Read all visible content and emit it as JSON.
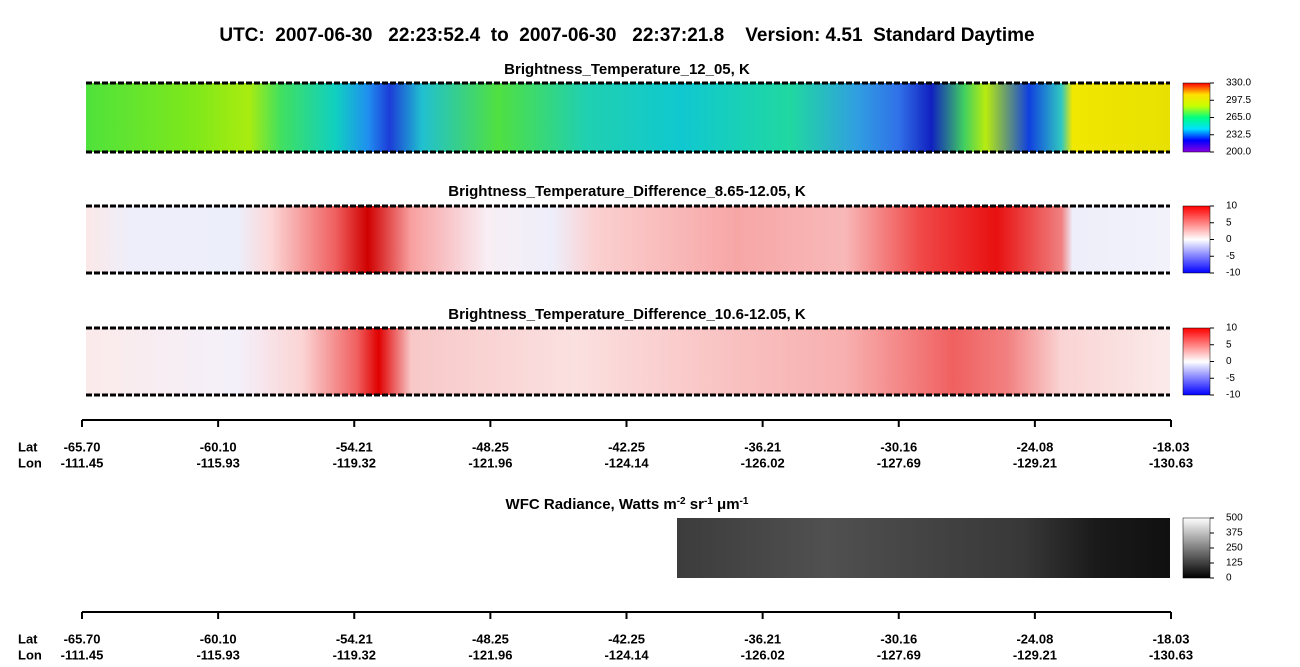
{
  "header": {
    "title": "UTC:  2007-06-30   22:23:52.4  to  2007-06-30   22:37:21.8    Version: 4.51  Standard Daytime"
  },
  "chart_data": [
    {
      "type": "heatmap",
      "title": "Brightness_Temperature_12_05, K",
      "clim": [
        200,
        330
      ],
      "cticks": [
        {
          "value": 330,
          "label": "330.0"
        },
        297.5,
        {
          "value": 265,
          "label": "265.0"
        },
        232.5,
        {
          "value": 200,
          "label": "200.0"
        }
      ],
      "colormap": [
        "#8a00e0",
        "#0000ff",
        "#00e0ff",
        "#00ff80",
        "#c8ff00",
        "#ffe000",
        "#ff0000"
      ]
    },
    {
      "type": "heatmap",
      "title": "Brightness_Temperature_Difference_8.65-12.05, K",
      "clim": [
        -10,
        10
      ],
      "cticks": [
        10,
        5,
        0,
        -5,
        -10
      ],
      "colormap": [
        "#0000ff",
        "#ffffff",
        "#ff0000"
      ]
    },
    {
      "type": "heatmap",
      "title": "Brightness_Temperature_Difference_10.6-12.05, K",
      "clim": [
        -10,
        10
      ],
      "cticks": [
        10,
        5,
        0,
        -5,
        -10
      ],
      "colormap": [
        "#0000ff",
        "#ffffff",
        "#ff0000"
      ]
    },
    {
      "type": "heatmap",
      "title_parts": [
        "WFC Radiance, Watts m",
        "-2",
        " sr",
        "-1",
        " μm",
        "-1"
      ],
      "clim": [
        0,
        500
      ],
      "cticks": [
        500,
        375,
        250,
        125,
        0
      ],
      "colormap": [
        "#000000",
        "#ffffff"
      ]
    }
  ],
  "axes": [
    {
      "lat_label": "Lat",
      "lon_label": "Lon",
      "lat": [
        "-65.70",
        "-60.10",
        "-54.21",
        "-48.25",
        "-42.25",
        "-36.21",
        "-30.16",
        "-24.08",
        "-18.03"
      ],
      "lon": [
        "-111.45",
        "-115.93",
        "-119.32",
        "-121.96",
        "-124.14",
        "-126.02",
        "-127.69",
        "-129.21",
        "-130.63"
      ]
    },
    {
      "lat_label": "Lat",
      "lon_label": "Lon",
      "lat": [
        "-65.70",
        "-60.10",
        "-54.21",
        "-48.25",
        "-42.25",
        "-36.21",
        "-30.16",
        "-24.08",
        "-18.03"
      ],
      "lon": [
        "-111.45",
        "-115.93",
        "-119.32",
        "-121.96",
        "-124.14",
        "-126.02",
        "-127.69",
        "-129.21",
        "-130.63"
      ]
    }
  ]
}
